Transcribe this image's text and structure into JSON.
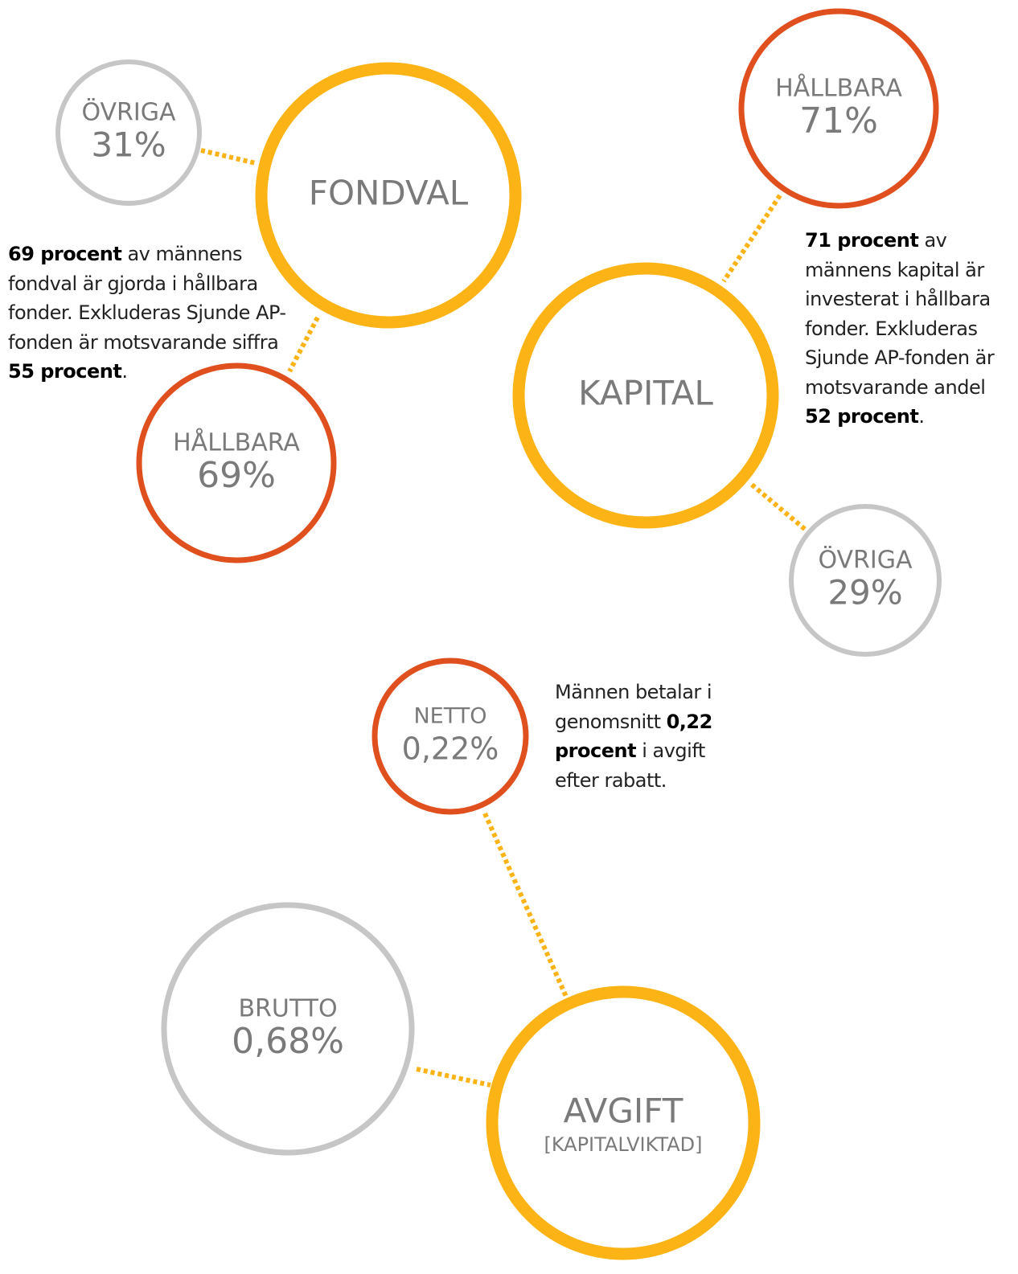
{
  "nodes": [
    {
      "label": "FONDVAL",
      "color": "#fbb316"
    },
    {
      "label": "ÖVRIGA",
      "value": "31%",
      "color": "#c6c6c6"
    },
    {
      "label": "HÅLLBARA",
      "value": "69%",
      "color": "#e0501e"
    },
    {
      "label": "HÅLLBARA",
      "value": "71%",
      "color": "#e0501e"
    },
    {
      "label": "KAPITAL",
      "color": "#fbb316"
    },
    {
      "label": "ÖVRIGA",
      "value": "29%",
      "color": "#c6c6c6"
    },
    {
      "label": "NETTO",
      "value": "0,22%",
      "color": "#e0501e"
    },
    {
      "label": "BRUTTO",
      "value": "0,68%",
      "color": "#c6c6c6"
    },
    {
      "label": "AVGIFT",
      "sublabel": "[KAPITALVIKTAD]",
      "color": "#fbb316"
    }
  ],
  "connector_color": "#fbb316",
  "paragraphs": [
    {
      "parts": [
        {
          "text": "69 procent",
          "bold": true
        },
        {
          "text": " av männens fondval är gjorda i hållbara fonder. Exkluderas Sjunde AP-fonden är motsvarande siffra ",
          "bold": false
        },
        {
          "text": "55 procent",
          "bold": true
        },
        {
          "text": ".",
          "bold": false
        }
      ]
    },
    {
      "parts": [
        {
          "text": "71 procent",
          "bold": true
        },
        {
          "text": " av männens kapital är investerat i hållbara fonder. Exkluderas Sjunde AP-fonden är motsvarande andel ",
          "bold": false
        },
        {
          "text": "52 procent",
          "bold": true
        },
        {
          "text": ".",
          "bold": false
        }
      ]
    },
    {
      "parts": [
        {
          "text": "Männen betalar i genomsnitt ",
          "bold": false
        },
        {
          "text": "0,22 procent",
          "bold": true
        },
        {
          "text": " i avgift efter rabatt.",
          "bold": false
        }
      ]
    }
  ]
}
